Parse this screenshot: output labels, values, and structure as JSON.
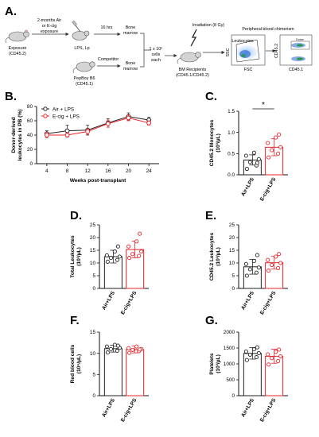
{
  "panels": {
    "A": "A.",
    "B": "B.",
    "C": "C.",
    "D": "D.",
    "E": "E.",
    "F": "F.",
    "G": "G."
  },
  "schematic": {
    "exposure": [
      "Exposure",
      "(CD45.2)"
    ],
    "arrow_label": [
      "2-months Air",
      "or E-cig",
      "exposure"
    ],
    "hrs16": "16 hrs",
    "lps": "LPS, Lp",
    "bone_marrow_1": [
      "Bone",
      "marrow"
    ],
    "competitor": "Competitor",
    "bone_marrow_2": [
      "Bone",
      "marrow"
    ],
    "pepboy": [
      "PepBoy B6",
      "(CD45.1)"
    ],
    "cells": [
      "1 x 10⁶",
      "cells",
      "each"
    ],
    "irradiation": "Irradiation (8 Gy)",
    "recipients": [
      "BM Recipients",
      "(CD45.1/CD45.2)"
    ],
    "chimerism_title": "Peripheral blood chimerism",
    "leukocytes": "Leukocytes",
    "ssc": "SSC",
    "fsc": "FSC",
    "cd452": "CD45.2",
    "cd451": "CD45.1",
    "gate_label": "Donor"
  },
  "colors": {
    "air": "#222222",
    "ecig": "#e8232a"
  },
  "chart_data": [
    {
      "id": "B",
      "type": "line",
      "xlabel": "Weeks post-transplant",
      "ylabel": "Donor-derived leukocytes in PB (%)",
      "x": [
        4,
        8,
        12,
        16,
        20,
        24
      ],
      "xlim": [
        2,
        26
      ],
      "ylim": [
        0,
        80
      ],
      "xticks": [
        "4",
        "8",
        "12",
        "16",
        "20",
        "24"
      ],
      "yticks": [
        "0",
        "20",
        "40",
        "60",
        "80"
      ],
      "legend_position": "top-left",
      "series": [
        {
          "name": "Air + LPS",
          "values": [
            42,
            46,
            47,
            57,
            66,
            61
          ],
          "err": [
            4,
            8,
            7,
            6,
            5,
            4
          ]
        },
        {
          "name": "E-cig + LPS",
          "values": [
            40,
            40,
            45,
            56,
            64,
            57
          ],
          "err": [
            4,
            3,
            4,
            5,
            4,
            3
          ]
        }
      ]
    },
    {
      "id": "C",
      "type": "bar",
      "ylabel": "CD45.2 Monocytes (10³/µL)",
      "categories": [
        "Air+LPS",
        "E-cig+LPS"
      ],
      "values": [
        0.35,
        0.65
      ],
      "err": [
        0.12,
        0.2
      ],
      "ylim": [
        0,
        1.5
      ],
      "yticks": [
        "0.0",
        "0.5",
        "1.0",
        "1.5"
      ],
      "significance": "*",
      "points": [
        [
          0.14,
          0.22,
          0.3,
          0.37,
          0.45,
          0.52,
          0.28
        ],
        [
          0.41,
          0.5,
          0.58,
          0.65,
          0.75,
          0.88,
          0.95
        ]
      ]
    },
    {
      "id": "D",
      "type": "bar",
      "ylabel": "Total Leukocytes (10³/µL)",
      "categories": [
        "Air+LPS",
        "E-cig+LPS"
      ],
      "values": [
        12.5,
        15.3
      ],
      "err": [
        2.5,
        3.3
      ],
      "ylim": [
        0,
        25
      ],
      "yticks": [
        "0",
        "5",
        "10",
        "15",
        "20",
        "25"
      ],
      "points": [
        [
          10.5,
          11.2,
          12,
          12.5,
          13,
          14.5,
          16.5
        ],
        [
          12,
          12.8,
          13.5,
          14.5,
          16.5,
          18.5,
          21.5
        ]
      ]
    },
    {
      "id": "E",
      "type": "bar",
      "ylabel": "CD45.2 Leukocytes (10³/µL)",
      "categories": [
        "Air+LPS",
        "E-cig+LPS"
      ],
      "values": [
        8.5,
        10.1
      ],
      "err": [
        2.9,
        2.5
      ],
      "ylim": [
        0,
        25
      ],
      "yticks": [
        "0",
        "5",
        "10",
        "15",
        "20",
        "25"
      ],
      "points": [
        [
          5,
          6.2,
          7.5,
          8.2,
          9.6,
          10.8,
          13.1
        ],
        [
          7,
          8,
          9.2,
          10,
          11.2,
          12.5,
          13.5
        ]
      ]
    },
    {
      "id": "F",
      "type": "bar",
      "ylabel": "Red blood cells (10⁶/µL)",
      "categories": [
        "Air+LPS",
        "E-cig+LPS"
      ],
      "values": [
        11.1,
        10.9
      ],
      "err": [
        0.8,
        0.8
      ],
      "ylim": [
        0,
        15
      ],
      "yticks": [
        "0",
        "5",
        "10",
        "15"
      ],
      "points": [
        [
          10.2,
          10.6,
          11,
          11.3,
          11.6,
          12,
          11.8
        ],
        [
          10.1,
          10.5,
          10.8,
          11,
          11.2,
          11.6,
          10.9
        ]
      ]
    },
    {
      "id": "G",
      "type": "bar",
      "ylabel": "Platelets (10³/µL)",
      "categories": [
        "Air+LPS",
        "E-cig+LPS"
      ],
      "values": [
        1330,
        1240
      ],
      "err": [
        180,
        220
      ],
      "ylim": [
        0,
        2000
      ],
      "yticks": [
        "0",
        "500",
        "1000",
        "1500",
        "2000"
      ],
      "points": [
        [
          1120,
          1210,
          1290,
          1340,
          1390,
          1460,
          1520
        ],
        [
          980,
          1090,
          1180,
          1240,
          1300,
          1380,
          1450
        ]
      ]
    }
  ]
}
